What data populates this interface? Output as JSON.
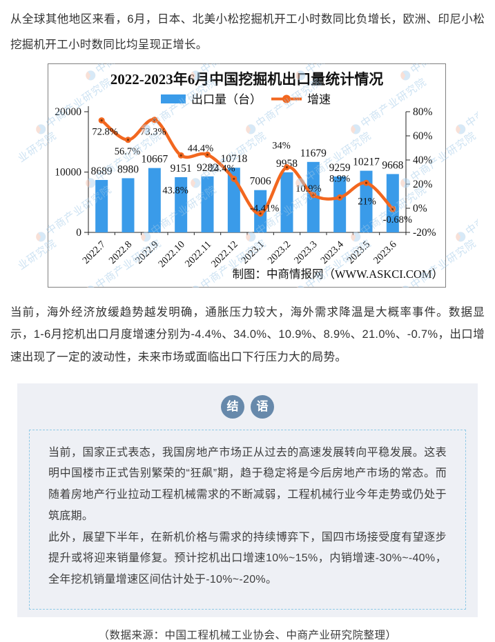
{
  "page": {
    "intro_paragraph": "从全球其他地区来看，6月，日本、北美小松挖掘机开工小时数同比负增长，欧洲、印尼小松挖掘机开工小时数同比均呈现正增长。",
    "analysis_paragraph": "当前，海外经济放缓趋势越发明确，通胀压力较大，海外需求降温是大概率事件。数据显示，1-6月挖机出口月度增速分别为-4.4%、34.0%、10.9%、8.9%、21.0%、-0.7%，出口增速出现了一定的波动性，未来市场或面临出口下行压力大的局势。",
    "source_line": "（数据来源：中国工程机械工业协会、中商产业研究院整理）"
  },
  "conclusion": {
    "badge_char_1": "结",
    "badge_char_2": "语",
    "paragraph1": "当前，国家正式表态，我国房地产市场正从过去的高速发展转向平稳发展。这表明中国楼市正式告别繁荣的“狂飙”期，趋于稳定将是今后房地产市场的常态。而随着房地产行业拉动工程机械需求的不断减弱，工程机械行业今年走势或仍处于筑底期。",
    "paragraph2": "此外，展望下半年，在新机价格与需求的持续博弈下，国四市场接受度有望逐步提升或将迎来销量修复。预计挖机出口增速10%~15%，内销增速-30%~-40%，全年挖机销量增速区间估计处于-10%~-20%。"
  },
  "chart_data": {
    "type": "bar+line",
    "title": "2022-2023年6月中国挖掘机出口量统计情况",
    "categories": [
      "2022.7",
      "2022.8",
      "2022.9",
      "2022.10",
      "2022.11",
      "2022.12",
      "2023.1",
      "2023.2",
      "2023.3",
      "2023.4",
      "2023.5",
      "2023.6"
    ],
    "series": [
      {
        "name": "出口量（台）",
        "type": "bar",
        "axis": "left",
        "color": "#3a9be9",
        "values": [
          8689,
          8980,
          10667,
          9151,
          9282,
          10718,
          7006,
          9958,
          11679,
          9259,
          10217,
          9668
        ]
      },
      {
        "name": "增速",
        "type": "line",
        "axis": "right",
        "color": "#f2671f",
        "values": [
          72.8,
          56.7,
          73.3,
          43.8,
          44.4,
          24.4,
          -4.41,
          34,
          10.9,
          8.9,
          21,
          -0.68
        ],
        "labels": [
          "72.8%",
          "56.7%",
          "73.3%",
          "43.8%",
          "44.4%",
          "24.4%",
          "-4.41%",
          "34%",
          "10.9%",
          "8.9%",
          "21%",
          "-0.68%"
        ]
      }
    ],
    "left_axis": {
      "min": 0,
      "max": 20000,
      "ticks": [
        "0",
        "10000",
        "20000"
      ]
    },
    "right_axis": {
      "min": -20,
      "max": 80,
      "ticks": [
        "-20%",
        "0%",
        "20%",
        "40%",
        "60%",
        "80%"
      ]
    },
    "grid": "off",
    "legend_position": "top",
    "credit": "制图：中商情报网（WWW.ASKCI.COM）",
    "watermark_text": "中商产业研究院"
  }
}
